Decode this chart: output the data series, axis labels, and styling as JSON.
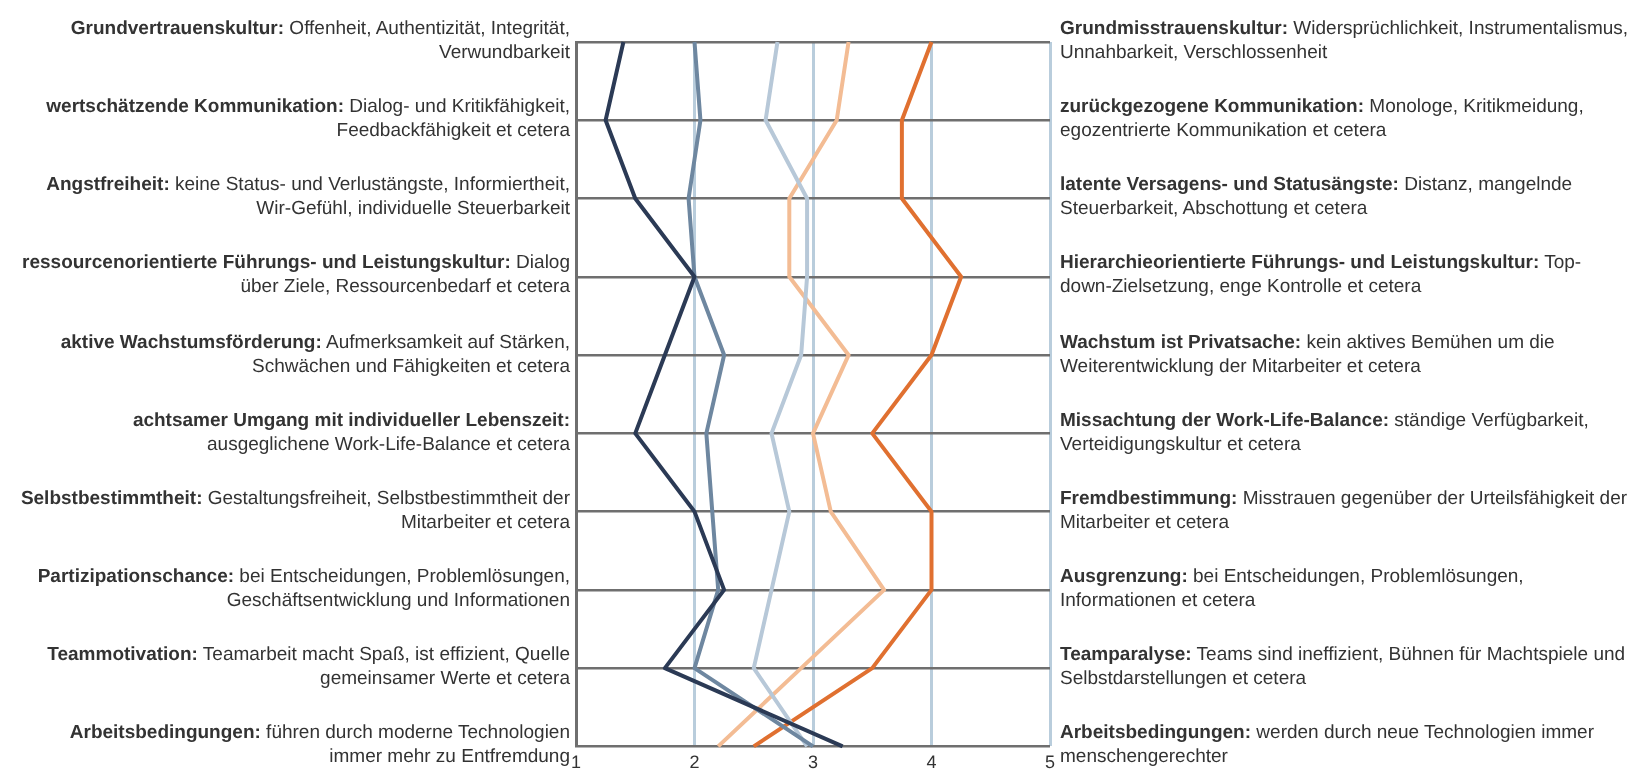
{
  "chart_data": {
    "type": "line",
    "orientation": "horizontal",
    "categories": [
      "Grundvertrauenskultur: Offenheit, Authentizität, Integrität, Verwundbarkeit",
      "wertschätzende Kommunikation: Dialog- und Kritikfähigkeit, Feedbackfähigkeit et cetera",
      "Angstfreiheit: keine Status- und Verlustängste, Informiertheit, Wir-Gefühl, individuelle Steuerbarkeit",
      "ressourcenorientierte Führungs- und Leistungskultur: Dialog über Ziele, Ressourcenbedarf et cetera",
      "aktive Wachstumsförderung: Aufmerksamkeit auf Stärken, Schwächen und Fähigkeiten et cetera",
      "achtsamer Umgang mit individueller Lebenszeit: ausgeglichene Work-Life-Balance et cetera",
      "Selbstbestimmtheit: Gestaltungsfreiheit, Selbstbestimmtheit der Mitarbeiter et cetera",
      "Partizipationschance: bei Entscheidungen, Problemlösungen, Geschäftsentwicklung und Informationen",
      "Teammotivation: Teamarbeit macht Spaß, ist effizient, Quelle gemeinsamer Werte et cetera",
      "Arbeitsbedingungen: führen durch moderne Technologien immer mehr zu Entfremdung"
    ],
    "y2_categories": [
      "Grundmisstrauenskultur: Widersprüchlichkeit, Instrumentalismus, Unnahbarkeit, Verschlossenheit",
      "zurückgezogene Kommunikation: Monologe, Kritikmeidung, egozentrierte Kommunikation et cetera",
      "latente Versagens- und Statusängste: Distanz, mangelnde Steuerbarkeit, Abschottung et cetera",
      "Hierarchieorientierte Führungs- und Leistungskultur: Top-down-Zielsetzung, enge Kontrolle et cetera",
      "Wachstum ist Privatsache: kein aktives Bemühen um die Weiterentwicklung der Mitarbeiter et cetera",
      "Missachtung der Work-Life-Balance: ständige Verfügbarkeit, Verteidigungskultur et cetera",
      "Fremdbestimmung: Misstrauen gegenüber der Urteilsfähigkeit der Mitarbeiter et cetera",
      "Ausgrenzung: bei Entscheidungen, Problemlösungen, Informationen et cetera",
      "Teamparalyse: Teams sind ineffizient, Bühnen für Machtspiele und Selbstdarstellungen et cetera",
      "Arbeitsbedingungen: werden durch neue Technologien immer menschengerechter"
    ],
    "xlim": [
      1,
      5
    ],
    "xticks": [
      1,
      2,
      3,
      4,
      5
    ],
    "grid": true,
    "series": [
      {
        "color": "#2b3a55",
        "values": [
          1.4,
          1.25,
          1.5,
          2.0,
          1.75,
          1.5,
          2.0,
          2.25,
          1.75,
          3.25
        ]
      },
      {
        "color": "#6e87a0",
        "values": [
          2.0,
          2.05,
          1.95,
          2.0,
          2.25,
          2.1,
          2.15,
          2.2,
          2.0,
          3.0
        ]
      },
      {
        "color": "#b7c8d8",
        "values": [
          2.7,
          2.6,
          2.95,
          2.95,
          2.9,
          2.65,
          2.8,
          2.65,
          2.5,
          2.95
        ]
      },
      {
        "color": "#f3bc94",
        "values": [
          3.3,
          3.2,
          2.8,
          2.8,
          3.3,
          3.0,
          3.15,
          3.6,
          2.9,
          2.2
        ]
      },
      {
        "color": "#e07030",
        "values": [
          4.0,
          3.75,
          3.75,
          4.25,
          4.0,
          3.5,
          4.0,
          4.0,
          3.5,
          2.5
        ]
      }
    ]
  }
}
